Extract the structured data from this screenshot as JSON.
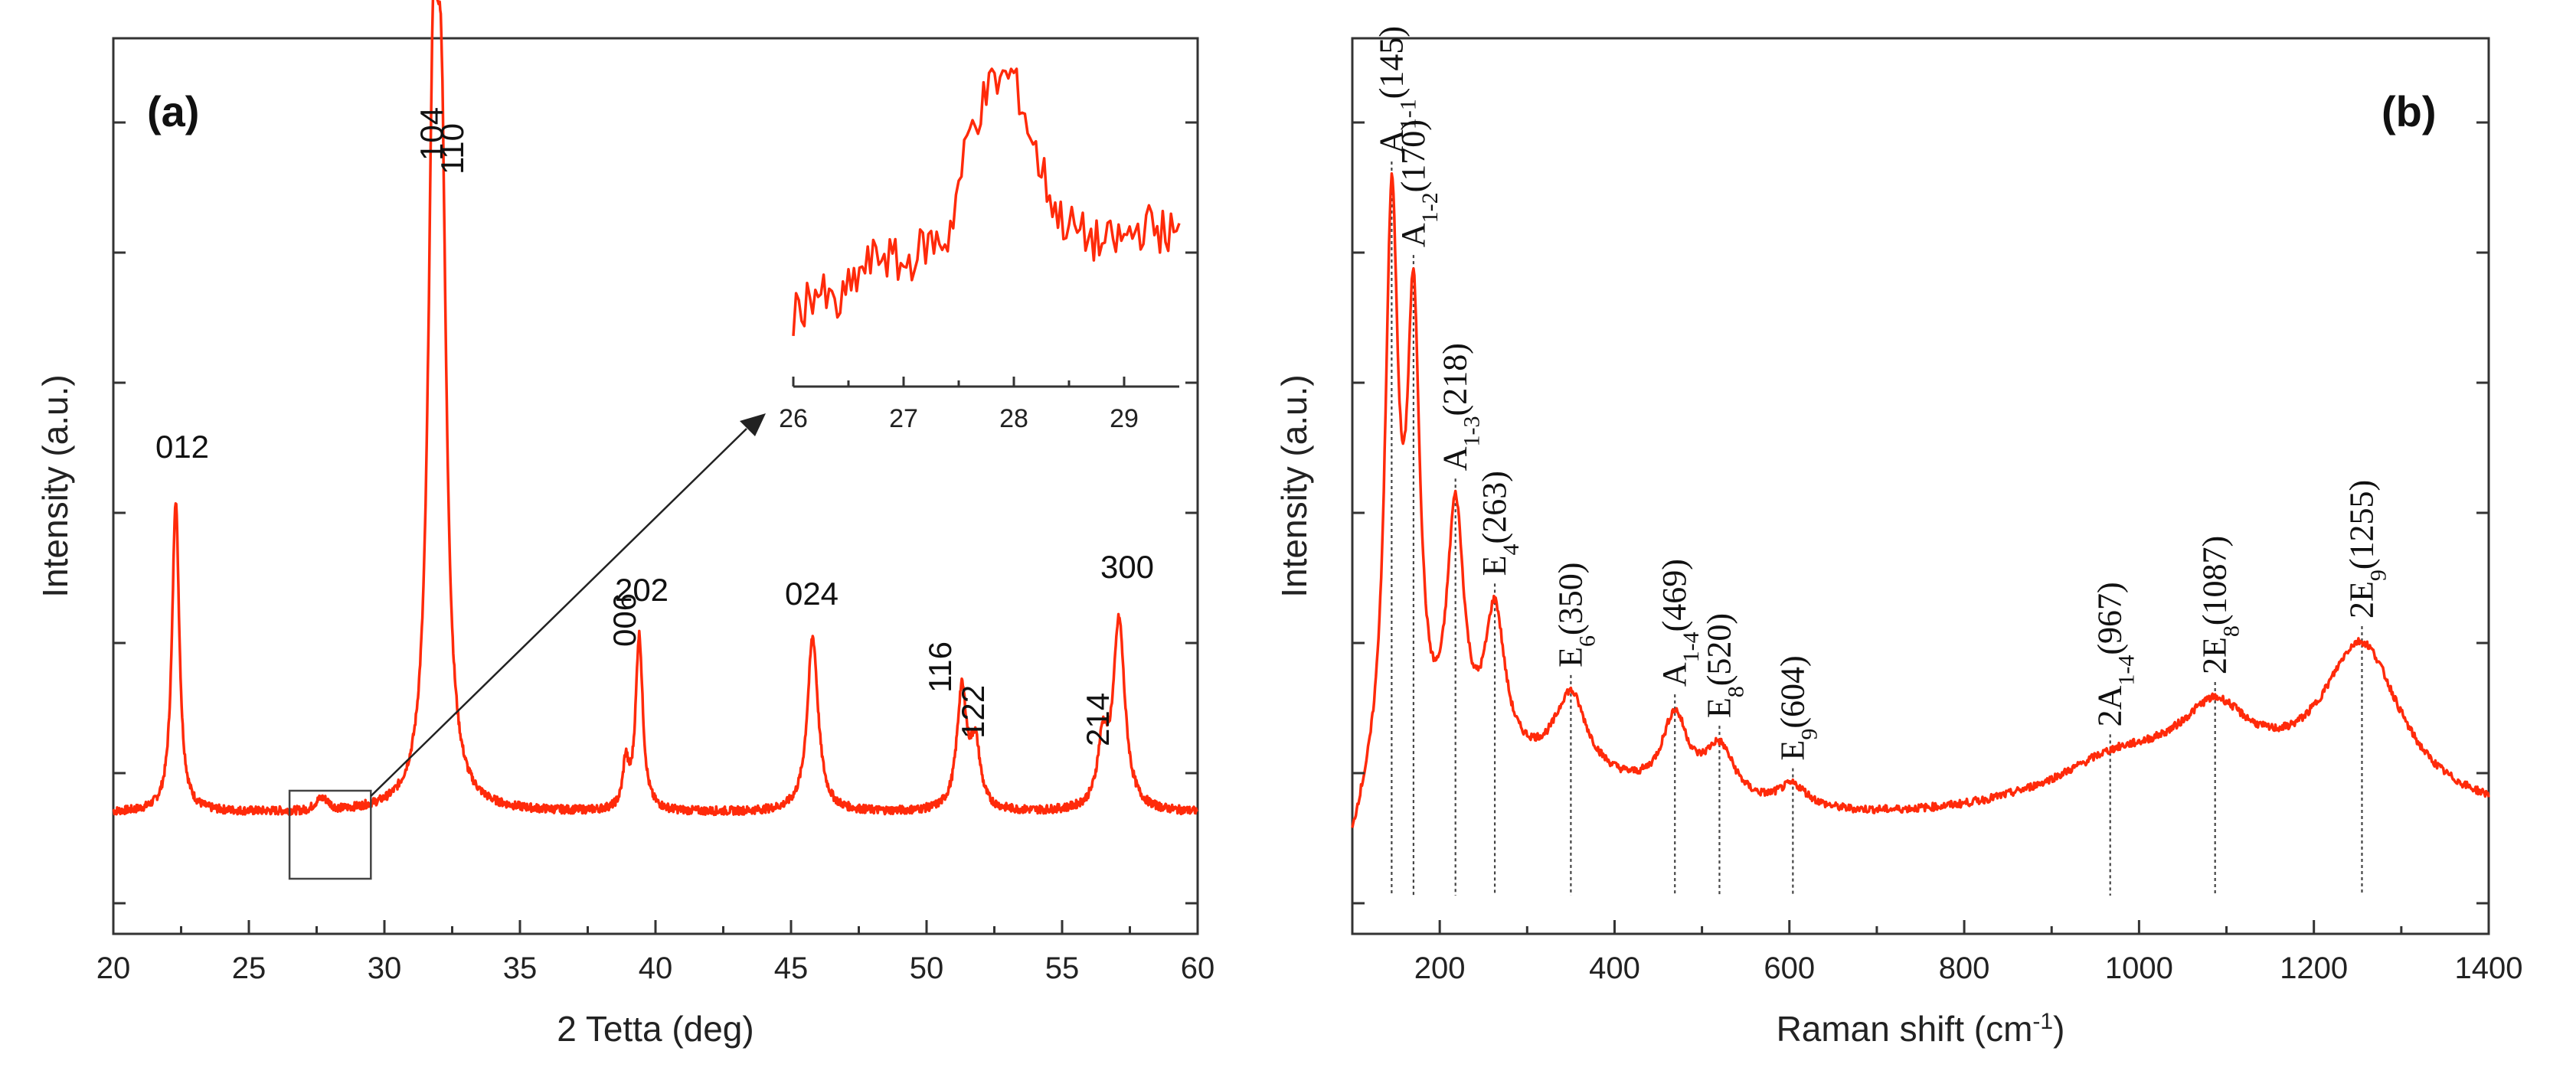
{
  "figure": {
    "color": "#ff2a0a",
    "panels": [
      "(a)",
      "(b)"
    ]
  },
  "chart_data": [
    {
      "type": "line",
      "panel": "(a)",
      "title": "",
      "xlabel": "2 Tetta (deg)",
      "ylabel": "Intensity (a.u.)",
      "xlim": [
        20,
        60
      ],
      "ylim": [
        0,
        1
      ],
      "xticks": [
        "20",
        "25",
        "30",
        "35",
        "40",
        "45",
        "50",
        "55",
        "60"
      ],
      "baseline": 0.065,
      "peaks": [
        {
          "label": "012",
          "x": 22.3,
          "h": 0.5
        },
        {
          "label": "104",
          "x": 31.8,
          "h": 1.0
        },
        {
          "label": "110",
          "x": 32.1,
          "h": 0.9
        },
        {
          "label": "006",
          "x": 38.9,
          "h": 0.07
        },
        {
          "label": "202",
          "x": 39.4,
          "h": 0.28
        },
        {
          "label": "024",
          "x": 45.8,
          "h": 0.28
        },
        {
          "label": "116",
          "x": 51.3,
          "h": 0.19
        },
        {
          "label": "122",
          "x": 51.8,
          "h": 0.1
        },
        {
          "label": "214",
          "x": 56.5,
          "h": 0.1
        },
        {
          "label": "300",
          "x": 57.1,
          "h": 0.3
        }
      ],
      "zoom_box_range": [
        26.5,
        29.5
      ],
      "inset": {
        "xlim": [
          26,
          29.5
        ],
        "xticks": [
          "26",
          "27",
          "28",
          "29"
        ],
        "x": [
          26.0,
          26.2,
          26.4,
          26.6,
          26.8,
          27.0,
          27.2,
          27.4,
          27.6,
          27.8,
          28.0,
          28.2,
          28.4,
          28.6,
          28.8,
          29.0,
          29.2,
          29.4
        ],
        "y": [
          0.12,
          0.22,
          0.15,
          0.28,
          0.35,
          0.3,
          0.38,
          0.4,
          0.78,
          0.95,
          0.98,
          0.7,
          0.48,
          0.42,
          0.38,
          0.4,
          0.45,
          0.42
        ]
      }
    },
    {
      "type": "line",
      "panel": "(b)",
      "title": "",
      "xlabel": "Raman shift (cm",
      "xlabel_sup": "-1",
      "xlabel_end": ")",
      "ylabel": "Intensity (a.u.)",
      "xlim": [
        100,
        1400
      ],
      "ylim": [
        0,
        1
      ],
      "xticks": [
        "200",
        "400",
        "600",
        "800",
        "1000",
        "1200",
        "1400"
      ],
      "modes": [
        {
          "pre": "A",
          "sub": "1-1",
          "mid": "",
          "sub2": "",
          "val": "(145)",
          "x": 145,
          "h": 0.82
        },
        {
          "pre": "A",
          "sub": "1-2",
          "mid": "",
          "sub2": "",
          "val": "(170)",
          "x": 170,
          "h": 0.66
        },
        {
          "pre": "A",
          "sub": "1-3",
          "mid": "",
          "sub2": "",
          "val": "(218)",
          "x": 218,
          "h": 0.42
        },
        {
          "pre": "E",
          "sub": "4",
          "mid": "",
          "sub2": "",
          "val": "(263)",
          "x": 263,
          "h": 0.29
        },
        {
          "pre": "E",
          "sub": "6",
          "mid": "",
          "sub2": "",
          "val": "(350)",
          "x": 350,
          "h": 0.2
        },
        {
          "pre": "A",
          "sub": "1-4",
          "mid": "",
          "sub2": "",
          "val": "(469)",
          "x": 469,
          "h": 0.2
        },
        {
          "pre": "E",
          "sub": "8",
          "mid": "",
          "sub2": "",
          "val": "(520)",
          "x": 520,
          "h": 0.17
        },
        {
          "pre": "E",
          "sub": "9",
          "mid": "",
          "sub2": "",
          "val": "(604)",
          "x": 604,
          "h": 0.13
        },
        {
          "pre": "2A",
          "sub": "1-4",
          "mid": "",
          "sub2": "",
          "val": "(967)",
          "x": 967,
          "h": 0.12
        },
        {
          "pre": "2E",
          "sub": "8",
          "mid": "",
          "sub2": "",
          "val": "(1087)",
          "x": 1087,
          "h": 0.17
        },
        {
          "pre": "2E",
          "sub": "9",
          "mid": "",
          "sub2": "",
          "val": "(1255)",
          "x": 1255,
          "h": 0.3
        }
      ]
    }
  ]
}
